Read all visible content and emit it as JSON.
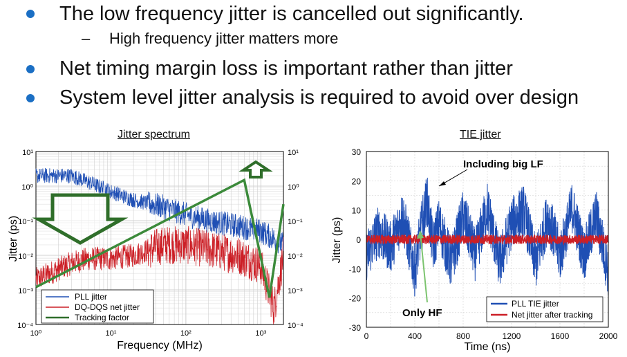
{
  "bullets": [
    {
      "text": "The low frequency jitter is cancelled out significantly."
    },
    {
      "text": "Net timing margin loss is important rather than jitter"
    },
    {
      "text": "System level jitter analysis is required to avoid over design"
    }
  ],
  "sub_bullet": {
    "dash": "–",
    "text": "High frequency jitter matters more"
  },
  "colors": {
    "bullet": "#1b6fc4",
    "blue": "#1f4fb4",
    "red": "#cc1f26",
    "green": "#3b8a3a",
    "dark_green": "#2f6e2a"
  },
  "chart_data": [
    {
      "type": "line",
      "title": "Jitter spectrum",
      "xlabel": "Frequency (MHz)",
      "ylabel": "Jitter (ps)",
      "x_scale": "log",
      "y_scale": "log",
      "xlim": [
        1,
        2000
      ],
      "ylim": [
        0.0001,
        10
      ],
      "y_tick_labels": [
        "10¹",
        "10⁰",
        "10⁻¹",
        "10⁻²",
        "10⁻³",
        "10⁻⁴"
      ],
      "x_tick_labels": [
        "10⁰",
        "10¹",
        "10²",
        "10³"
      ],
      "right_axis_tick_labels": [
        "10¹",
        "10⁰",
        "10⁻¹",
        "10⁻²",
        "10⁻³",
        "10⁻⁴"
      ],
      "legend_position": "bottom-left",
      "series": [
        {
          "name": "PLL jitter",
          "color": "#1f4fb4",
          "x": [
            1,
            2,
            3,
            5,
            10,
            20,
            50,
            100,
            200,
            500,
            1000,
            1500,
            2000
          ],
          "y": [
            2,
            2,
            2,
            1.3,
            0.7,
            0.4,
            0.25,
            0.15,
            0.1,
            0.07,
            0.05,
            0.03,
            0.02
          ]
        },
        {
          "name": "DQ-DQS net jitter",
          "color": "#cc1f26",
          "x": [
            1,
            2,
            3,
            5,
            10,
            20,
            50,
            100,
            200,
            500,
            1000,
            1500,
            2000
          ],
          "y": [
            0.002,
            0.004,
            0.006,
            0.008,
            0.008,
            0.01,
            0.02,
            0.02,
            0.015,
            0.01,
            0.005,
            0.0003,
            0.01
          ]
        },
        {
          "name": "Tracking factor",
          "color": "#3b8a3a",
          "x": [
            1,
            600,
            1300,
            2000
          ],
          "y": [
            0.0012,
            1.5,
            0.0006,
            0.3
          ]
        }
      ]
    },
    {
      "type": "line",
      "title": "TIE jitter",
      "xlabel": "Time (ns)",
      "ylabel": "Jitter (ps)",
      "xlim": [
        0,
        2000
      ],
      "ylim": [
        -30,
        30
      ],
      "x_ticks": [
        0,
        400,
        800,
        1200,
        1600,
        2000
      ],
      "y_ticks": [
        30,
        20,
        10,
        0,
        -10,
        -20,
        -30
      ],
      "legend_position": "bottom-right",
      "series": [
        {
          "name": "PLL TIE jitter",
          "color": "#1f4fb4",
          "x": [
            0,
            100,
            200,
            300,
            400,
            450,
            500,
            550,
            600,
            700,
            800,
            900,
            1000,
            1100,
            1200,
            1300,
            1400,
            1500,
            1600,
            1700,
            1800,
            1900,
            2000
          ],
          "y": [
            -10,
            5,
            -5,
            15,
            -20,
            5,
            25,
            -5,
            10,
            -15,
            15,
            -10,
            20,
            -15,
            10,
            18,
            -15,
            15,
            -10,
            20,
            -10,
            15,
            -20
          ]
        },
        {
          "name": "Net jitter after tracking",
          "color": "#cc1f26",
          "x": [
            0,
            2000
          ],
          "y": [
            0,
            0
          ]
        }
      ],
      "annotations": [
        "Including big LF",
        "Only HF"
      ]
    }
  ]
}
